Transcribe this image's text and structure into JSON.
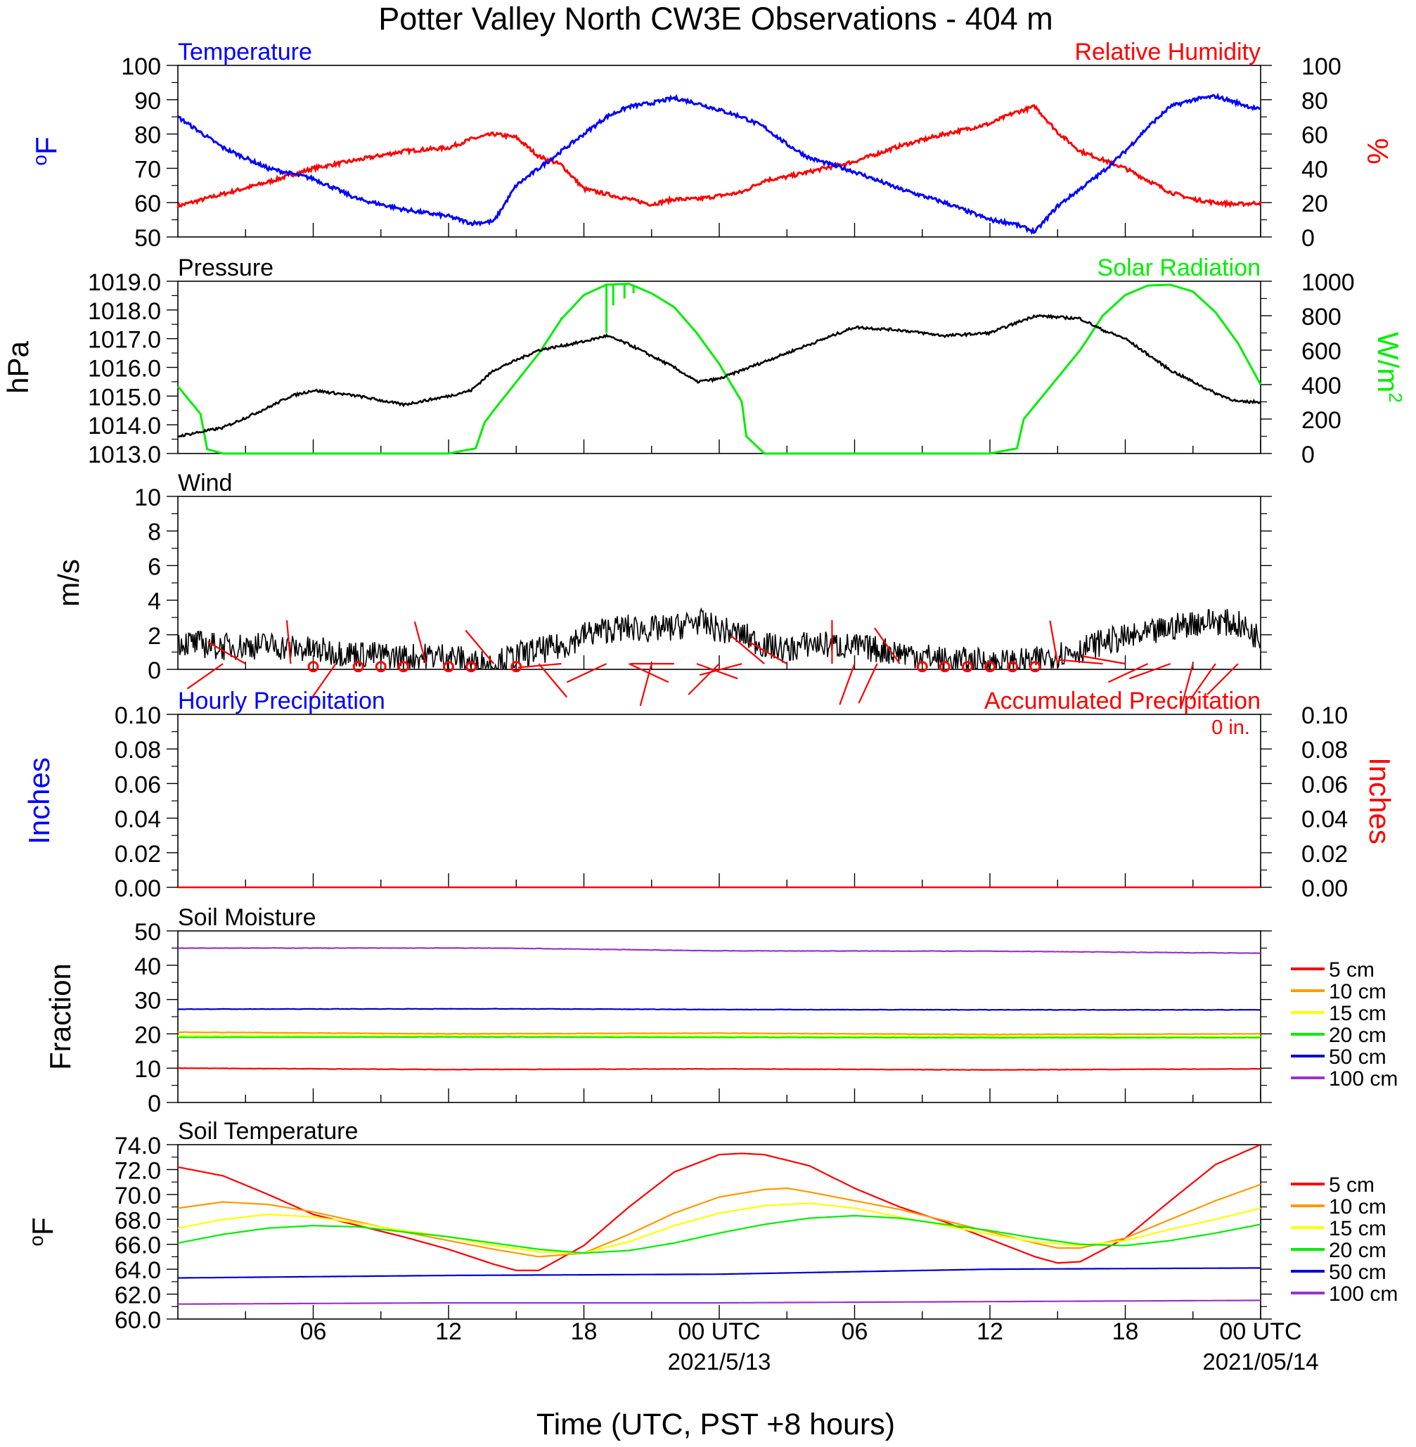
{
  "title": "Potter Valley North CW3E Observations - 404 m",
  "xlabel": "Time (UTC, PST +8 hours)",
  "x_ticks": [
    "06",
    "12",
    "18",
    "00 UTC",
    "06",
    "12",
    "18",
    "00 UTC"
  ],
  "date_labels": [
    "2021/5/13",
    "2021/05/14"
  ],
  "colors": {
    "temperature": "#0000ff",
    "humidity": "#ff0000",
    "pressure": "#000000",
    "solar": "#00ee00",
    "wind": "#000000",
    "wind_barb": "#ff0000",
    "soil": {
      "5 cm": "#ff0000",
      "10 cm": "#ff9900",
      "15 cm": "#ffff00",
      "20 cm": "#00ee00",
      "50 cm": "#0000cc",
      "100 cm": "#9933cc"
    }
  },
  "chart_data": [
    {
      "type": "line",
      "panel": "temperature_humidity",
      "left_title": "Temperature",
      "right_title": "Relative Humidity",
      "ylabel": "oF",
      "y2label": "%",
      "ylim": [
        50,
        100
      ],
      "y2lim": [
        0,
        100
      ],
      "yticks": [
        "100",
        "90",
        "80",
        "70",
        "60",
        "50"
      ],
      "y2ticks": [
        "100",
        "80",
        "60",
        "40",
        "20",
        "0"
      ],
      "xlim_hours": [
        0,
        48
      ],
      "series": [
        {
          "name": "Temperature",
          "axis": "left",
          "x": [
            0,
            2,
            4,
            6,
            8,
            10,
            12,
            13,
            14,
            15,
            16,
            17,
            18,
            19,
            20,
            21,
            22,
            23,
            24,
            25,
            26,
            27,
            28,
            30,
            32,
            34,
            36,
            37,
            38,
            39,
            40,
            41,
            42,
            43,
            44,
            45,
            46,
            47,
            48
          ],
          "values": [
            85,
            76,
            70,
            67,
            61,
            58,
            56,
            54,
            54.5,
            65,
            70,
            75,
            80,
            85,
            88,
            89,
            90.5,
            89,
            87,
            85,
            82,
            77,
            73,
            69,
            64,
            60,
            55,
            54,
            51.5,
            59,
            64,
            69,
            75,
            82,
            88,
            90,
            91,
            89,
            87
          ]
        },
        {
          "name": "Relative Humidity",
          "axis": "right",
          "x": [
            0,
            2,
            4,
            6,
            8,
            10,
            12,
            13,
            14,
            15,
            16,
            17,
            18,
            19,
            20,
            21,
            22,
            23,
            24,
            25,
            26,
            27,
            28,
            30,
            32,
            34,
            36,
            37,
            38,
            39,
            40,
            41,
            42,
            43,
            44,
            45,
            46,
            47,
            48
          ],
          "values": [
            18,
            25,
            32,
            40,
            45,
            50,
            52,
            57,
            60,
            58,
            47,
            42,
            28,
            25,
            22,
            19,
            22,
            22,
            24,
            26,
            33,
            35,
            38,
            44,
            53,
            60,
            66,
            72,
            76,
            61,
            50,
            45,
            40,
            33,
            26,
            22,
            20,
            19,
            20
          ]
        }
      ]
    },
    {
      "type": "line",
      "panel": "pressure_solar",
      "left_title": "Pressure",
      "right_title": "Solar Radiation",
      "ylabel": "hPa",
      "y2label": "W/m2",
      "ylim": [
        1013.0,
        1019.0
      ],
      "y2lim": [
        0,
        1000
      ],
      "yticks": [
        "1019.0",
        "1018.0",
        "1017.0",
        "1016.0",
        "1015.0",
        "1014.0",
        "1013.0"
      ],
      "y2ticks": [
        "1000",
        "800",
        "600",
        "400",
        "200",
        "0"
      ],
      "xlim_hours": [
        0,
        48
      ],
      "series": [
        {
          "name": "Pressure",
          "axis": "left",
          "x": [
            0,
            2,
            4,
            5,
            6,
            8,
            10,
            12,
            13,
            14,
            16,
            18,
            19,
            20,
            22,
            23,
            24,
            26,
            28,
            30,
            32,
            34,
            36,
            37,
            38,
            40,
            41,
            42,
            44,
            46,
            47,
            48
          ],
          "values": [
            1013.6,
            1013.9,
            1014.6,
            1015.0,
            1015.2,
            1015.0,
            1014.7,
            1015.0,
            1015.2,
            1015.9,
            1016.6,
            1016.9,
            1017.1,
            1016.8,
            1016.0,
            1015.5,
            1015.6,
            1016.2,
            1016.8,
            1017.4,
            1017.3,
            1017.1,
            1017.2,
            1017.5,
            1017.8,
            1017.7,
            1017.3,
            1017.0,
            1015.9,
            1015.1,
            1014.8,
            1014.8
          ]
        },
        {
          "name": "Solar Radiation",
          "axis": "right",
          "x": [
            0,
            1,
            1.3,
            2,
            12,
            13.2,
            13.6,
            14,
            16,
            17,
            18,
            19,
            20,
            21,
            22,
            23,
            24,
            25,
            25.2,
            26,
            36,
            37.2,
            37.5,
            38,
            40,
            41,
            42,
            43,
            44,
            45,
            46,
            47,
            48
          ],
          "values": [
            390,
            230,
            25,
            0,
            0,
            30,
            180,
            250,
            580,
            780,
            920,
            980,
            985,
            930,
            850,
            700,
            520,
            300,
            100,
            0,
            0,
            30,
            200,
            280,
            600,
            800,
            920,
            975,
            980,
            940,
            820,
            640,
            400
          ]
        }
      ]
    },
    {
      "type": "line",
      "panel": "wind",
      "left_title": "Wind",
      "ylabel": "m/s",
      "ylim": [
        0,
        10
      ],
      "yticks": [
        "10",
        "8",
        "6",
        "4",
        "2",
        "0"
      ],
      "xlim_hours": [
        0,
        48
      ],
      "series": [
        {
          "name": "Wind",
          "x": [
            0,
            2,
            4,
            6,
            8,
            10,
            12,
            13,
            14,
            15,
            16,
            17,
            18,
            19,
            20,
            21,
            22,
            23,
            24,
            25,
            26,
            27,
            28,
            30,
            32,
            33,
            34,
            35,
            36,
            37,
            38,
            39,
            40,
            41,
            42,
            43,
            44,
            45,
            46,
            47,
            48
          ],
          "values": [
            1.6,
            1.3,
            1.4,
            1.1,
            0.9,
            0.7,
            0.8,
            0.4,
            0.3,
            0.8,
            1.1,
            1.3,
            2.0,
            2.3,
            2.4,
            2.3,
            2.4,
            2.8,
            2.3,
            2.0,
            1.4,
            1.1,
            1.5,
            1.3,
            1.0,
            0.8,
            0.5,
            0.5,
            0.4,
            0.4,
            0.5,
            0.9,
            1.1,
            1.6,
            1.8,
            2.0,
            2.4,
            2.7,
            2.8,
            2.6,
            1.8
          ]
        }
      ],
      "calm_circles_hours": [
        6,
        8,
        9,
        10,
        12,
        13,
        15,
        33,
        34,
        35,
        36,
        37,
        38
      ],
      "barbs": [
        {
          "hour": 2,
          "speed": 1.5,
          "dir_deg": 235
        },
        {
          "hour": 3,
          "speed": 1.7,
          "dir_deg": 300
        },
        {
          "hour": 5,
          "speed": 1.3,
          "dir_deg": 355
        },
        {
          "hour": 7,
          "speed": 1.8,
          "dir_deg": 215
        },
        {
          "hour": 11,
          "speed": 1.4,
          "dir_deg": 345
        },
        {
          "hour": 14,
          "speed": 1.5,
          "dir_deg": 320
        },
        {
          "hour": 16,
          "speed": 1.6,
          "dir_deg": 140
        },
        {
          "hour": 17,
          "speed": 1.4,
          "dir_deg": 265
        },
        {
          "hour": 19,
          "speed": 1.9,
          "dir_deg": 245
        },
        {
          "hour": 20,
          "speed": 1.8,
          "dir_deg": 115
        },
        {
          "hour": 21,
          "speed": 2.3,
          "dir_deg": 195
        },
        {
          "hour": 22,
          "speed": 2.0,
          "dir_deg": 270
        },
        {
          "hour": 23,
          "speed": 2.1,
          "dir_deg": 110
        },
        {
          "hour": 24,
          "speed": 2.0,
          "dir_deg": 225
        },
        {
          "hour": 25,
          "speed": 1.5,
          "dir_deg": 255
        },
        {
          "hour": 26,
          "speed": 1.8,
          "dir_deg": 310
        },
        {
          "hour": 27,
          "speed": 1.6,
          "dir_deg": 300
        },
        {
          "hour": 29,
          "speed": 1.5,
          "dir_deg": 0
        },
        {
          "hour": 30,
          "speed": 1.5,
          "dir_deg": 200
        },
        {
          "hour": 31,
          "speed": 1.6,
          "dir_deg": 205
        },
        {
          "hour": 32,
          "speed": 1.6,
          "dir_deg": 325
        },
        {
          "hour": 39,
          "speed": 1.5,
          "dir_deg": 350
        },
        {
          "hour": 41,
          "speed": 1.8,
          "dir_deg": 275
        },
        {
          "hour": 42,
          "speed": 1.7,
          "dir_deg": 280
        },
        {
          "hour": 43,
          "speed": 1.9,
          "dir_deg": 245
        },
        {
          "hour": 44,
          "speed": 1.9,
          "dir_deg": 250
        },
        {
          "hour": 45,
          "speed": 1.6,
          "dir_deg": 195
        },
        {
          "hour": 46,
          "speed": 2.0,
          "dir_deg": 215
        },
        {
          "hour": 47,
          "speed": 2.2,
          "dir_deg": 225
        }
      ]
    },
    {
      "type": "line",
      "panel": "precipitation",
      "left_title": "Hourly Precipitation",
      "right_title": "Accumulated Precipitation",
      "total_label": "0 in.",
      "ylabel": "Inches",
      "y2label": "Inches",
      "ylim": [
        0,
        0.1
      ],
      "y2lim": [
        0,
        0.1
      ],
      "yticks": [
        "0.10",
        "0.08",
        "0.06",
        "0.04",
        "0.02",
        "0.00"
      ],
      "xlim_hours": [
        0,
        48
      ],
      "series": [
        {
          "name": "Accumulated Precipitation",
          "axis": "right",
          "x": [
            0,
            48
          ],
          "values": [
            0,
            0
          ]
        }
      ]
    },
    {
      "type": "line",
      "panel": "soil_moisture",
      "left_title": "Soil Moisture",
      "ylabel": "Fraction",
      "ylim": [
        0,
        50
      ],
      "yticks": [
        "50",
        "40",
        "30",
        "20",
        "10",
        "0"
      ],
      "xlim_hours": [
        0,
        48
      ],
      "legend": [
        "5 cm",
        "10 cm",
        "15 cm",
        "20 cm",
        "50 cm",
        "100 cm"
      ],
      "series": [
        {
          "name": "100 cm",
          "x": [
            0,
            14,
            24,
            36,
            48
          ],
          "values": [
            45,
            45,
            44.2,
            44.1,
            43.5
          ]
        },
        {
          "name": "50 cm",
          "x": [
            0,
            14,
            24,
            36,
            48
          ],
          "values": [
            27.2,
            27.3,
            27.1,
            27.0,
            27.0
          ]
        },
        {
          "name": "10 cm",
          "x": [
            0,
            12,
            24,
            36,
            48
          ],
          "values": [
            20.5,
            20.0,
            20.2,
            19.8,
            20.0
          ]
        },
        {
          "name": "15 cm",
          "x": [
            0,
            48
          ],
          "values": [
            19.5,
            19.2
          ]
        },
        {
          "name": "20 cm",
          "x": [
            0,
            12,
            24,
            36,
            48
          ],
          "values": [
            19.0,
            19.1,
            19.0,
            18.9,
            18.9
          ]
        },
        {
          "name": "5 cm",
          "x": [
            0,
            12,
            24,
            36,
            48
          ],
          "values": [
            10.0,
            9.6,
            9.8,
            9.5,
            9.8
          ]
        }
      ]
    },
    {
      "type": "line",
      "panel": "soil_temperature",
      "left_title": "Soil Temperature",
      "ylabel": "oF",
      "ylim": [
        60.0,
        74.0
      ],
      "yticks": [
        "74.0",
        "72.0",
        "70.0",
        "68.0",
        "66.0",
        "64.0",
        "62.0",
        "60.0"
      ],
      "xlim_hours": [
        0,
        48
      ],
      "legend": [
        "5 cm",
        "10 cm",
        "15 cm",
        "20 cm",
        "50 cm",
        "100 cm"
      ],
      "series": [
        {
          "name": "5 cm",
          "x": [
            0,
            2,
            4,
            6,
            8,
            10,
            12,
            14,
            15,
            16,
            18,
            20,
            22,
            24,
            25,
            26,
            28,
            30,
            32,
            34,
            36,
            38,
            39,
            40,
            42,
            44,
            46,
            48
          ],
          "values": [
            72.2,
            71.5,
            70.0,
            68.4,
            67.5,
            66.6,
            65.6,
            64.4,
            63.9,
            63.9,
            65.9,
            69.0,
            71.8,
            73.2,
            73.3,
            73.2,
            72.3,
            70.5,
            69.0,
            67.8,
            66.4,
            65.0,
            64.5,
            64.6,
            66.5,
            69.5,
            72.4,
            74.0
          ]
        },
        {
          "name": "10 cm",
          "x": [
            0,
            2,
            4,
            6,
            8,
            10,
            12,
            14,
            16,
            18,
            20,
            22,
            24,
            26,
            27,
            28,
            30,
            32,
            34,
            36,
            38,
            39,
            40,
            42,
            44,
            46,
            48
          ],
          "values": [
            68.9,
            69.4,
            69.2,
            68.6,
            67.8,
            67.0,
            66.3,
            65.6,
            65.0,
            65.3,
            66.8,
            68.5,
            69.8,
            70.4,
            70.5,
            70.2,
            69.5,
            68.8,
            67.9,
            67.0,
            66.1,
            65.7,
            65.7,
            66.5,
            68.0,
            69.5,
            70.8
          ]
        },
        {
          "name": "15 cm",
          "x": [
            0,
            2,
            4,
            6,
            8,
            10,
            12,
            14,
            16,
            18,
            20,
            22,
            24,
            26,
            28,
            30,
            32,
            34,
            36,
            38,
            40,
            42,
            44,
            46,
            48
          ],
          "values": [
            67.3,
            68.0,
            68.4,
            68.2,
            67.7,
            67.1,
            66.6,
            65.9,
            65.4,
            65.3,
            66.2,
            67.5,
            68.5,
            69.1,
            69.3,
            68.9,
            68.2,
            67.5,
            66.8,
            66.2,
            65.9,
            66.3,
            67.2,
            68.0,
            68.9
          ]
        },
        {
          "name": "20 cm",
          "x": [
            0,
            2,
            4,
            6,
            8,
            10,
            12,
            14,
            16,
            18,
            20,
            22,
            24,
            26,
            28,
            30,
            32,
            34,
            36,
            38,
            40,
            42,
            44,
            46,
            48
          ],
          "values": [
            66.1,
            66.8,
            67.3,
            67.5,
            67.4,
            67.0,
            66.6,
            66.1,
            65.6,
            65.3,
            65.5,
            66.1,
            66.9,
            67.6,
            68.1,
            68.3,
            68.1,
            67.6,
            67.1,
            66.5,
            66.0,
            65.9,
            66.3,
            66.9,
            67.6
          ]
        },
        {
          "name": "50 cm",
          "x": [
            0,
            12,
            24,
            36,
            48
          ],
          "values": [
            63.3,
            63.5,
            63.6,
            64.0,
            64.1
          ]
        },
        {
          "name": "100 cm",
          "x": [
            0,
            12,
            24,
            36,
            48
          ],
          "values": [
            61.2,
            61.3,
            61.3,
            61.4,
            61.5
          ]
        }
      ]
    }
  ]
}
